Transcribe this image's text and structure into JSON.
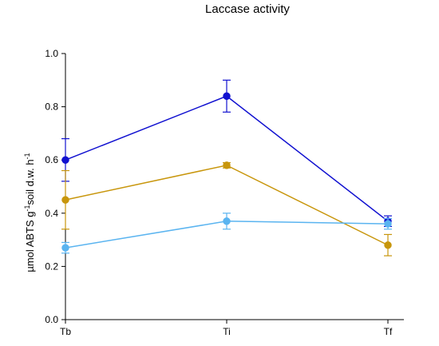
{
  "chart_data": {
    "type": "line",
    "title": "Laccase activity",
    "ylabel": {
      "pre": "µmol ABTS g",
      "sup1": "-1",
      "mid": "soil d.w. h",
      "sup2": "-1"
    },
    "xlabel": "",
    "categories": [
      "Tb",
      "Ti",
      "Tf"
    ],
    "ylim": [
      0,
      1.0
    ],
    "yticks": [
      "0.0",
      "0.2",
      "0.4",
      "0.6",
      "0.8",
      "1.0"
    ],
    "grid": false,
    "legend": "none",
    "series": [
      {
        "color": "#1010d0",
        "values": [
          0.6,
          0.84,
          0.37
        ],
        "errors": [
          0.08,
          0.06,
          0.02
        ]
      },
      {
        "color": "#c8960c",
        "values": [
          0.45,
          0.58,
          0.28
        ],
        "errors": [
          0.11,
          0.01,
          0.04
        ]
      },
      {
        "color": "#5ab4f0",
        "values": [
          0.27,
          0.37,
          0.36
        ],
        "errors": [
          0.02,
          0.03,
          0.02
        ]
      }
    ]
  }
}
